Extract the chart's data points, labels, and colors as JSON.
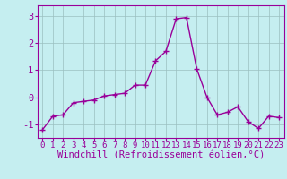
{
  "x": [
    0,
    1,
    2,
    3,
    4,
    5,
    6,
    7,
    8,
    9,
    10,
    11,
    12,
    13,
    14,
    15,
    16,
    17,
    18,
    19,
    20,
    21,
    22,
    23
  ],
  "y": [
    -1.2,
    -0.7,
    -0.65,
    -0.2,
    -0.15,
    -0.1,
    0.05,
    0.1,
    0.15,
    0.45,
    0.45,
    1.35,
    1.7,
    2.9,
    2.95,
    1.05,
    0.0,
    -0.65,
    -0.55,
    -0.35,
    -0.9,
    -1.15,
    -0.7,
    -0.75
  ],
  "line_color": "#990099",
  "marker": "+",
  "markersize": 4,
  "linewidth": 1.0,
  "markeredgewidth": 1.0,
  "xlabel": "Windchill (Refroidissement éolien,°C)",
  "xlabel_fontsize": 7.5,
  "ylim": [
    -1.5,
    3.4
  ],
  "xlim": [
    -0.5,
    23.5
  ],
  "yticks": [
    -1,
    0,
    1,
    2,
    3
  ],
  "xtick_labels": [
    "0",
    "1",
    "2",
    "3",
    "4",
    "5",
    "6",
    "7",
    "8",
    "9",
    "10",
    "11",
    "12",
    "13",
    "14",
    "15",
    "16",
    "17",
    "18",
    "19",
    "20",
    "21",
    "22",
    "23"
  ],
  "background_color": "#c5eef0",
  "grid_color": "#9bbfc0",
  "tick_fontsize": 6.5,
  "ytick_fontsize": 7.5
}
